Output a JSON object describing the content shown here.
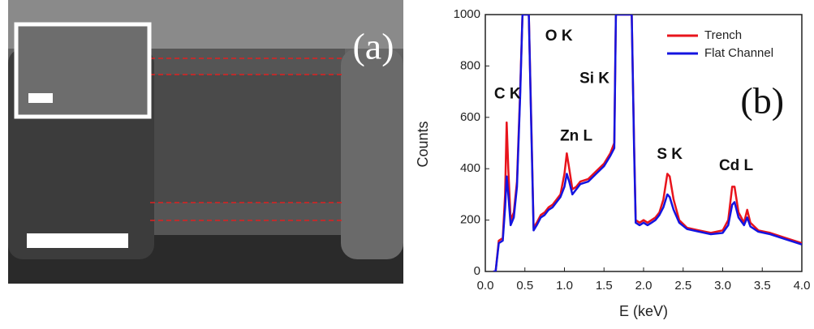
{
  "panel_a": {
    "label": "(a)"
  },
  "chart_data": {
    "type": "line",
    "x_label": "E (keV)",
    "y_label": "Counts",
    "xlim": [
      0,
      4
    ],
    "ylim": [
      0,
      1000
    ],
    "xticks": [
      {
        "value": 0,
        "label": "0.0"
      },
      0.5,
      {
        "value": 1,
        "label": "1.0"
      },
      1.5,
      {
        "value": 2,
        "label": "2.0"
      },
      2.5,
      {
        "value": 3,
        "label": "3.0"
      },
      3.5,
      {
        "value": 4,
        "label": "4.0"
      }
    ],
    "yticks": [
      0,
      200,
      400,
      600,
      800,
      1000
    ],
    "legend": "upper right",
    "x": [
      0.1,
      0.13,
      0.17,
      0.22,
      0.25,
      0.27,
      0.29,
      0.32,
      0.36,
      0.4,
      0.44,
      0.47,
      0.55,
      0.58,
      0.61,
      0.65,
      0.7,
      0.75,
      0.8,
      0.85,
      0.9,
      0.95,
      1.0,
      1.03,
      1.06,
      1.1,
      1.15,
      1.2,
      1.3,
      1.4,
      1.5,
      1.58,
      1.63,
      1.65,
      1.85,
      1.88,
      1.9,
      1.95,
      2.0,
      2.05,
      2.1,
      2.15,
      2.2,
      2.25,
      2.3,
      2.33,
      2.38,
      2.45,
      2.55,
      2.7,
      2.85,
      3.0,
      3.07,
      3.12,
      3.15,
      3.2,
      3.27,
      3.31,
      3.35,
      3.45,
      3.6,
      3.8,
      3.9,
      4.0
    ],
    "series": [
      {
        "name": "Trench",
        "color": "#e8141c",
        "values": [
          0,
          0,
          120,
          130,
          300,
          580,
          400,
          200,
          230,
          350,
          700,
          1000,
          1000,
          600,
          170,
          190,
          220,
          230,
          250,
          260,
          280,
          300,
          380,
          460,
          400,
          320,
          330,
          350,
          360,
          390,
          420,
          460,
          500,
          1000,
          1000,
          500,
          200,
          190,
          200,
          190,
          200,
          210,
          230,
          280,
          380,
          370,
          280,
          200,
          170,
          160,
          150,
          160,
          200,
          330,
          330,
          230,
          190,
          240,
          190,
          160,
          150,
          130,
          120,
          110
        ]
      },
      {
        "name": "Flat Channel",
        "color": "#1414e0",
        "values": [
          0,
          0,
          110,
          120,
          250,
          370,
          300,
          180,
          210,
          330,
          680,
          1000,
          1000,
          580,
          160,
          180,
          210,
          220,
          240,
          250,
          270,
          290,
          330,
          380,
          350,
          300,
          320,
          340,
          350,
          380,
          410,
          450,
          480,
          1000,
          1000,
          480,
          190,
          180,
          190,
          180,
          190,
          200,
          220,
          250,
          300,
          290,
          240,
          190,
          165,
          155,
          145,
          150,
          180,
          260,
          270,
          210,
          180,
          210,
          175,
          155,
          145,
          125,
          115,
          105
        ]
      }
    ],
    "annotations": [
      {
        "text": "C K",
        "x": 0.28,
        "y": 690
      },
      {
        "text": "O K",
        "x": 0.93,
        "y": 915
      },
      {
        "text": "Si K",
        "x": 1.38,
        "y": 750
      },
      {
        "text": "Zn L",
        "x": 1.15,
        "y": 525
      },
      {
        "text": "S K",
        "x": 2.33,
        "y": 455
      },
      {
        "text": "Cd L",
        "x": 3.17,
        "y": 410
      },
      {
        "text": "(b)",
        "x": 3.5,
        "y": 650
      }
    ]
  }
}
